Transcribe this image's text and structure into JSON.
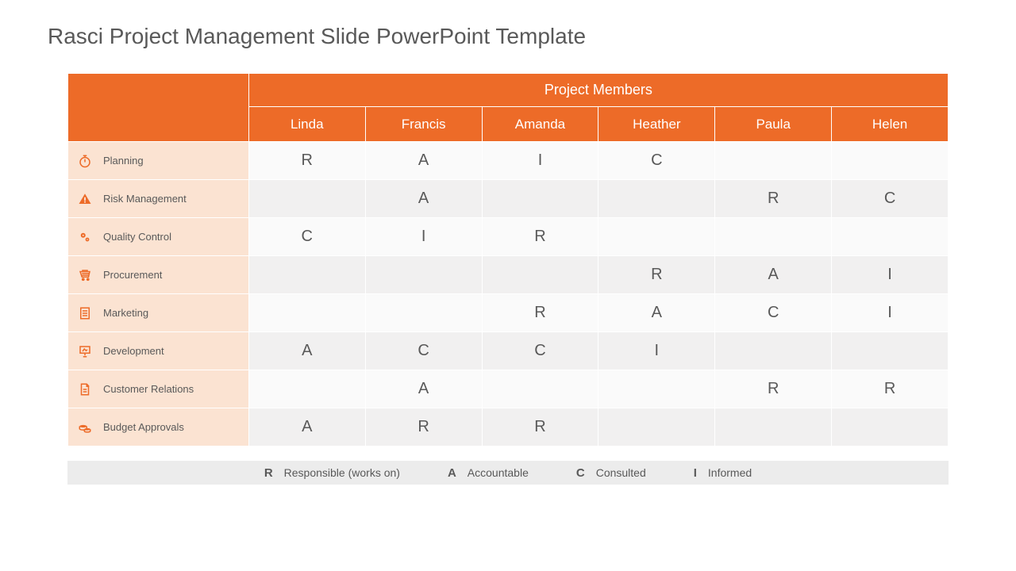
{
  "title": "Rasci Project Management Slide PowerPoint Template",
  "colors": {
    "accent": "#ed6b28",
    "task_bg": "#fbe3d2",
    "row_even": "#f1f0f0",
    "row_odd": "#fafafa",
    "text": "#595959",
    "legend_bg": "#ececec"
  },
  "header": {
    "group_label": "Project Members",
    "members": [
      "Linda",
      "Francis",
      "Amanda",
      "Heather",
      "Paula",
      "Helen"
    ]
  },
  "tasks": [
    {
      "icon": "stopwatch",
      "label": "Planning",
      "values": [
        "R",
        "A",
        "I",
        "C",
        "",
        ""
      ]
    },
    {
      "icon": "warning",
      "label": "Risk Management",
      "values": [
        "",
        "A",
        "",
        "",
        "R",
        "C"
      ]
    },
    {
      "icon": "gears",
      "label": "Quality Control",
      "values": [
        "C",
        "I",
        "R",
        "",
        "",
        ""
      ]
    },
    {
      "icon": "cart",
      "label": "Procurement",
      "values": [
        "",
        "",
        "",
        "R",
        "A",
        "I"
      ]
    },
    {
      "icon": "checklist",
      "label": "Marketing",
      "values": [
        "",
        "",
        "R",
        "A",
        "C",
        "I"
      ]
    },
    {
      "icon": "board",
      "label": "Development",
      "values": [
        "A",
        "C",
        "C",
        "I",
        "",
        ""
      ]
    },
    {
      "icon": "document",
      "label": "Customer Relations",
      "values": [
        "",
        "A",
        "",
        "",
        "R",
        "R"
      ]
    },
    {
      "icon": "coins",
      "label": "Budget Approvals",
      "values": [
        "A",
        "R",
        "R",
        "",
        "",
        ""
      ]
    }
  ],
  "legend": [
    {
      "key": "R",
      "label": "Responsible (works on)"
    },
    {
      "key": "A",
      "label": "Accountable"
    },
    {
      "key": "C",
      "label": "Consulted"
    },
    {
      "key": "I",
      "label": "Informed"
    }
  ]
}
